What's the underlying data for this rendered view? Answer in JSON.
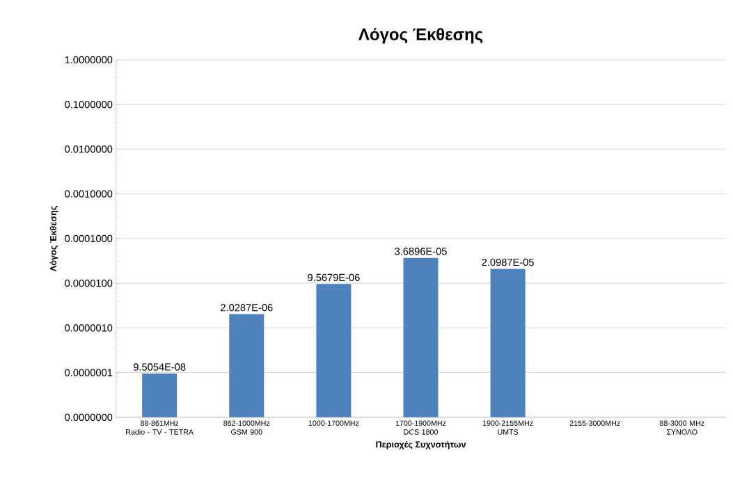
{
  "chart_data": {
    "type": "bar",
    "title": "Λόγος Έκθεσης",
    "xlabel": "Περιοχές Συχνοτήτων",
    "ylabel": "Λόγος Έκθεσης",
    "categories": [
      "88-861MHz\nRadio - TV - TETRA",
      "862-1000MHz\nGSM 900",
      "1000-1700MHz",
      "1700-1900MHz\nDCS 1800",
      "1900-2155MHz\nUMTS",
      "2155-3000MHz",
      "88-3000 MHz\nΣΥΝΟΛΟ"
    ],
    "values": [
      9.5054e-08,
      2.0287e-06,
      9.5679e-06,
      3.6896e-05,
      2.0987e-05,
      null,
      null
    ],
    "value_labels": [
      "9.5054E-08",
      "2.0287E-06",
      "9.5679E-06",
      "3.6896E-05",
      "2.0987E-05",
      null,
      null
    ],
    "color": "#4f81bd",
    "log": "y",
    "grid": "y",
    "ylim": [
      1e-08,
      1
    ],
    "yticks": [
      {
        "value": 1e-08,
        "label": "0.0000000"
      },
      {
        "value": 1e-07,
        "label": "0.0000001"
      },
      {
        "value": 1e-06,
        "label": "0.0000010"
      },
      {
        "value": 1e-05,
        "label": "0.0000100"
      },
      {
        "value": 0.0001,
        "label": "0.0001000"
      },
      {
        "value": 0.001,
        "label": "0.0010000"
      },
      {
        "value": 0.01,
        "label": "0.0100000"
      },
      {
        "value": 0.1,
        "label": "0.1000000"
      },
      {
        "value": 1,
        "label": "1.0000000"
      }
    ]
  }
}
